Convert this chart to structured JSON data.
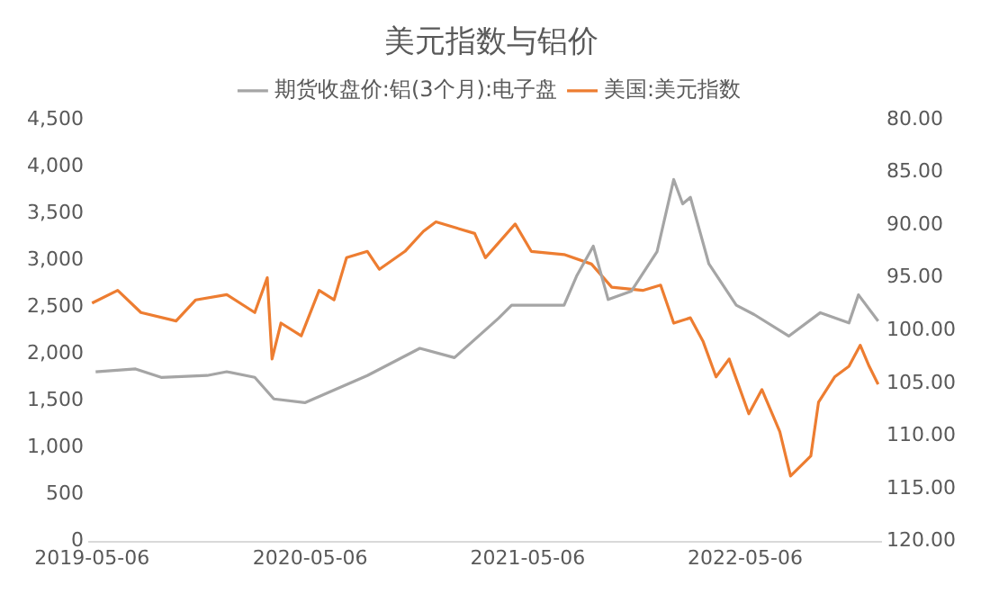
{
  "chart_data": {
    "type": "line",
    "title": "美元指数与铝价",
    "legend": "top",
    "grid": false,
    "marker": "none",
    "line_style": "solid",
    "xlim": [
      "2019-05-01",
      "2022-12-20"
    ],
    "xticks": [
      {
        "value": "2019-05-06",
        "label": "2019-05-06"
      },
      {
        "value": "2020-05-06",
        "label": "2020-05-06"
      },
      {
        "value": "2021-05-06",
        "label": "2021-05-06"
      },
      {
        "value": "2022-05-06",
        "label": "2022-05-06"
      }
    ],
    "ylim": [
      0,
      4500
    ],
    "yticks": [
      0,
      500,
      {
        "value": 1000,
        "label": "1,000"
      },
      {
        "value": 1500,
        "label": "1,500"
      },
      {
        "value": 2000,
        "label": "2,000"
      },
      {
        "value": 2500,
        "label": "2,500"
      },
      {
        "value": 3000,
        "label": "3,000"
      },
      {
        "value": 3500,
        "label": "3,500"
      },
      {
        "value": 4000,
        "label": "4,000"
      },
      {
        "value": 4500,
        "label": "4,500"
      }
    ],
    "y2lim": [
      120,
      80
    ],
    "y2ticks": [
      {
        "value": 80,
        "label": "80.00"
      },
      {
        "value": 85,
        "label": "85.00"
      },
      {
        "value": 90,
        "label": "90.00"
      },
      {
        "value": 95,
        "label": "95.00"
      },
      {
        "value": 100,
        "label": "100.00"
      },
      {
        "value": 105,
        "label": "105.00"
      },
      {
        "value": 110,
        "label": "110.00"
      },
      {
        "value": 115,
        "label": "115.00"
      },
      {
        "value": 120,
        "label": "120.00"
      }
    ],
    "series": [
      {
        "name": "期货收盘价:铝(3个月):电子盘",
        "color": "#a5a5a5",
        "x": [
          "2019-05-12",
          "2019-07-18",
          "2019-08-30",
          "2019-11-15",
          "2019-12-18",
          "2020-02-03",
          "2020-03-06",
          "2020-04-27",
          "2020-08-10",
          "2020-11-06",
          "2021-01-03",
          "2021-03-18",
          "2021-04-09",
          "2021-07-06",
          "2021-07-27",
          "2021-08-24",
          "2021-09-18",
          "2021-10-27",
          "2021-12-09",
          "2022-01-06",
          "2022-01-21",
          "2022-02-03",
          "2022-03-06",
          "2022-04-21",
          "2022-05-21",
          "2022-07-18",
          "2022-09-09",
          "2022-10-27",
          "2022-11-12",
          "2022-12-15"
        ],
        "values": [
          1810,
          1840,
          1750,
          1770,
          1810,
          1750,
          1520,
          1480,
          1770,
          2060,
          1960,
          2380,
          2520,
          2520,
          2830,
          3150,
          2580,
          2670,
          3090,
          3860,
          3600,
          3670,
          2960,
          2520,
          2420,
          2190,
          2440,
          2330,
          2630,
          2350
        ]
      },
      {
        "name": "美国:美元指数",
        "color": "#ed7d31",
        "axis": "y2",
        "x": [
          "2019-05-06",
          "2019-06-18",
          "2019-07-27",
          "2019-09-24",
          "2019-10-27",
          "2019-12-18",
          "2020-02-03",
          "2020-02-24",
          "2020-03-03",
          "2020-03-18",
          "2020-04-21",
          "2020-05-21",
          "2020-06-15",
          "2020-07-06",
          "2020-08-10",
          "2020-08-30",
          "2020-10-12",
          "2020-11-12",
          "2020-12-03",
          "2021-02-06",
          "2021-02-24",
          "2021-04-15",
          "2021-05-12",
          "2021-07-06",
          "2021-08-21",
          "2021-09-24",
          "2021-11-15",
          "2021-12-15",
          "2022-01-06",
          "2022-02-03",
          "2022-02-24",
          "2022-03-18",
          "2022-04-09",
          "2022-05-12",
          "2022-06-03",
          "2022-07-03",
          "2022-07-21",
          "2022-08-24",
          "2022-09-06",
          "2022-10-03",
          "2022-10-27",
          "2022-11-15",
          "2022-11-30",
          "2022-12-15"
        ],
        "values": [
          97.4,
          96.2,
          98.3,
          99.1,
          97.1,
          96.6,
          98.3,
          95.0,
          102.7,
          99.3,
          100.5,
          96.2,
          97.1,
          93.1,
          92.5,
          94.2,
          92.5,
          90.6,
          89.7,
          90.8,
          93.1,
          89.9,
          92.5,
          92.8,
          93.7,
          95.9,
          96.2,
          95.7,
          99.3,
          98.8,
          101.0,
          104.4,
          102.7,
          107.9,
          105.6,
          109.6,
          113.8,
          111.9,
          106.8,
          104.4,
          103.4,
          101.4,
          103.4,
          105.1
        ]
      }
    ]
  }
}
